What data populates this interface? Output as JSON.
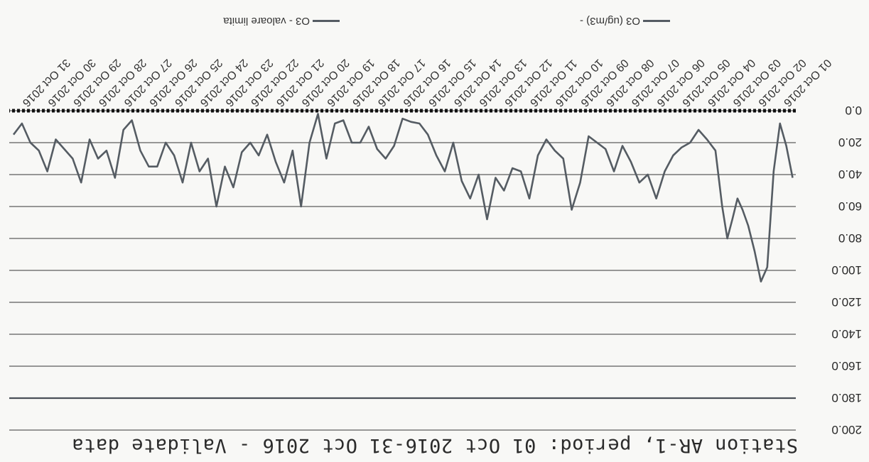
{
  "chart_data": {
    "type": "line",
    "title": "Station AR-1, period: 01 Oct 2016-31 Oct 2016 - Validate data",
    "xlabel": "",
    "ylabel": "",
    "ylim": [
      0,
      200
    ],
    "y_ticks": [
      "0.0",
      "20.0",
      "40.0",
      "60.0",
      "80.0",
      "100.0",
      "120.0",
      "140.0",
      "160.0",
      "180.0",
      "200.0"
    ],
    "x_tick_labels": [
      "01 Oct 2016",
      "02 Oct 2016",
      "03 Oct 2016",
      "04 Oct 2016",
      "05 Oct 2016",
      "06 Oct 2016",
      "07 Oct 2016",
      "08 Oct 2016",
      "09 Oct 2016",
      "10 Oct 2016",
      "11 Oct 2016",
      "12 Oct 2016",
      "13 Oct 2016",
      "14 Oct 2016",
      "15 Oct 2016",
      "16 Oct 2016",
      "17 Oct 2016",
      "18 Oct 2016",
      "19 Oct 2016",
      "20 Oct 2016",
      "21 Oct 2016",
      "22 Oct 2016",
      "23 Oct 2016",
      "24 Oct 2016",
      "25 Oct 2016",
      "26 Oct 2016",
      "27 Oct 2016",
      "28 Oct 2016",
      "29 Oct 2016",
      "30 Oct 2016",
      "31 Oct 2016"
    ],
    "grid": true,
    "legend_position": "bottom",
    "series": [
      {
        "name": "O3 (ug/m3) -",
        "color": "#555c63",
        "style": "solid",
        "x": [
          "01 Oct 2016",
          "01 Oct 2016",
          "01 Oct 2016",
          "01 Oct 2016",
          "02 Oct 2016",
          "02 Oct 2016",
          "02 Oct 2016",
          "02 Oct 2016",
          "03 Oct 2016",
          "03 Oct 2016",
          "03 Oct 2016",
          "03 Oct 2016",
          "03 Oct 2016",
          "04 Oct 2016",
          "04 Oct 2016",
          "04 Oct 2016",
          "05 Oct 2016",
          "05 Oct 2016",
          "05 Oct 2016",
          "06 Oct 2016",
          "06 Oct 2016",
          "06 Oct 2016",
          "07 Oct 2016",
          "07 Oct 2016",
          "07 Oct 2016",
          "08 Oct 2016",
          "08 Oct 2016",
          "08 Oct 2016",
          "09 Oct 2016",
          "09 Oct 2016",
          "09 Oct 2016",
          "10 Oct 2016",
          "10 Oct 2016",
          "10 Oct 2016",
          "11 Oct 2016",
          "11 Oct 2016",
          "11 Oct 2016",
          "12 Oct 2016",
          "12 Oct 2016",
          "12 Oct 2016",
          "13 Oct 2016",
          "13 Oct 2016",
          "13 Oct 2016",
          "14 Oct 2016",
          "14 Oct 2016",
          "14 Oct 2016",
          "15 Oct 2016",
          "15 Oct 2016",
          "15 Oct 2016",
          "16 Oct 2016",
          "16 Oct 2016",
          "16 Oct 2016",
          "17 Oct 2016",
          "17 Oct 2016",
          "17 Oct 2016",
          "18 Oct 2016",
          "18 Oct 2016",
          "18 Oct 2016",
          "19 Oct 2016",
          "19 Oct 2016",
          "19 Oct 2016",
          "20 Oct 2016",
          "20 Oct 2016",
          "20 Oct 2016",
          "21 Oct 2016",
          "21 Oct 2016",
          "21 Oct 2016",
          "22 Oct 2016",
          "22 Oct 2016",
          "22 Oct 2016",
          "23 Oct 2016",
          "23 Oct 2016",
          "23 Oct 2016",
          "24 Oct 2016",
          "24 Oct 2016",
          "24 Oct 2016",
          "25 Oct 2016",
          "25 Oct 2016",
          "25 Oct 2016",
          "26 Oct 2016",
          "26 Oct 2016",
          "26 Oct 2016",
          "27 Oct 2016",
          "27 Oct 2016",
          "27 Oct 2016",
          "28 Oct 2016",
          "28 Oct 2016",
          "28 Oct 2016",
          "29 Oct 2016",
          "29 Oct 2016",
          "29 Oct 2016",
          "30 Oct 2016",
          "30 Oct 2016",
          "30 Oct 2016",
          "31 Oct 2016",
          "31 Oct 2016",
          "31 Oct 2016"
        ],
        "values": [
          42,
          22,
          8,
          38,
          98,
          107,
          88,
          72,
          62,
          55,
          68,
          80,
          60,
          25,
          18,
          12,
          20,
          23,
          28,
          38,
          55,
          40,
          45,
          32,
          22,
          38,
          24,
          20,
          16,
          45,
          62,
          30,
          25,
          18,
          28,
          55,
          38,
          36,
          50,
          42,
          68,
          40,
          55,
          44,
          20,
          38,
          28,
          15,
          8,
          7,
          5,
          22,
          30,
          24,
          10,
          20,
          20,
          6,
          8,
          30,
          2,
          20,
          60,
          25,
          45,
          32,
          15,
          28,
          20,
          26,
          48,
          35,
          60,
          30,
          38,
          20,
          45,
          28,
          20,
          35,
          35,
          25,
          6,
          12,
          42,
          25,
          30,
          18,
          45,
          30,
          24,
          18,
          38,
          25,
          20,
          8,
          15
        ]
      },
      {
        "name": "O3 - valoare limita",
        "color": "#111111",
        "style": "dotted",
        "x": [
          "01 Oct 2016",
          "31 Oct 2016"
        ],
        "values": [
          0,
          0
        ]
      },
      {
        "name": "",
        "color": "#4a5058",
        "style": "solid",
        "x": [
          "01 Oct 2016",
          "31 Oct 2016"
        ],
        "values": [
          180,
          180
        ]
      }
    ]
  }
}
